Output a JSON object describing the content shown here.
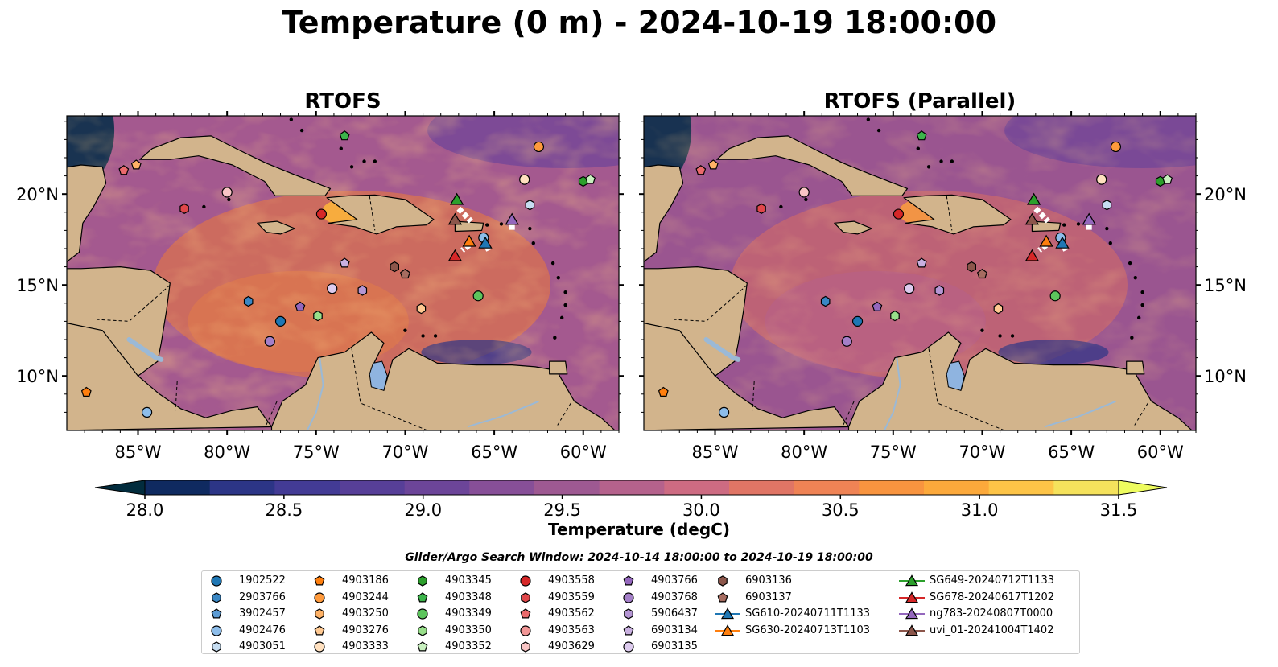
{
  "title": "Temperature (0 m) - 2024-10-19 18:00:00",
  "panels": [
    {
      "title": "RTOFS"
    },
    {
      "title": "RTOFS (Parallel)"
    }
  ],
  "map": {
    "lon_range": [
      -89,
      -58
    ],
    "lat_range": [
      7,
      24.3
    ],
    "lon_ticks": [
      "85°W",
      "80°W",
      "75°W",
      "70°W",
      "65°W",
      "60°W"
    ],
    "lat_ticks": [
      "20°N",
      "15°N",
      "10°N"
    ],
    "land_color": "#d2b48c",
    "lake_color": "#8fb4e0",
    "river_color": "#9bb9d6"
  },
  "colorbar": {
    "label": "Temperature (degC)",
    "ticks": [
      "28.0",
      "28.5",
      "29.0",
      "29.5",
      "30.0",
      "30.5",
      "31.0",
      "31.5"
    ],
    "range": [
      28.0,
      31.5
    ],
    "colors": [
      "#022c3d",
      "#0f2a60",
      "#2c3586",
      "#433b95",
      "#573f98",
      "#6c4599",
      "#874f98",
      "#9e5992",
      "#b5628c",
      "#cd6b82",
      "#e07565",
      "#ef8355",
      "#f8943f",
      "#fca93b",
      "#fdc447",
      "#f5e25c",
      "#eefc5f"
    ]
  },
  "search_window": "Glider/Argo Search Window: 2024-10-14 18:00:00 to 2024-10-19 18:00:00",
  "legend": {
    "columns": [
      [
        {
          "label": "1902522",
          "marker": "circle",
          "color": "#1f77b4"
        },
        {
          "label": "2903766",
          "marker": "hexagon",
          "color": "#3a87c4"
        },
        {
          "label": "3902457",
          "marker": "pentagon",
          "color": "#5c9bd4"
        },
        {
          "label": "4902476",
          "marker": "circle",
          "color": "#8dbdea"
        },
        {
          "label": "4903051",
          "marker": "hexagon",
          "color": "#c6ddf1"
        }
      ],
      [
        {
          "label": "4903186",
          "marker": "pentagon",
          "color": "#ff7f0e"
        },
        {
          "label": "4903244",
          "marker": "circle",
          "color": "#ff9a3c"
        },
        {
          "label": "4903250",
          "marker": "hexagon",
          "color": "#ffb266"
        },
        {
          "label": "4903276",
          "marker": "pentagon",
          "color": "#ffc992"
        },
        {
          "label": "4903333",
          "marker": "circle",
          "color": "#ffe0bf"
        }
      ],
      [
        {
          "label": "4903345",
          "marker": "hexagon",
          "color": "#2ca02c"
        },
        {
          "label": "4903348",
          "marker": "pentagon",
          "color": "#3cb44b"
        },
        {
          "label": "4903349",
          "marker": "circle",
          "color": "#5cc45c"
        },
        {
          "label": "4903350",
          "marker": "hexagon",
          "color": "#98df8a"
        },
        {
          "label": "4903352",
          "marker": "pentagon",
          "color": "#c8f0bf"
        }
      ],
      [
        {
          "label": "4903558",
          "marker": "circle",
          "color": "#d62728"
        },
        {
          "label": "4903559",
          "marker": "hexagon",
          "color": "#e0474a"
        },
        {
          "label": "4903562",
          "marker": "pentagon",
          "color": "#ea6a6c"
        },
        {
          "label": "4903563",
          "marker": "circle",
          "color": "#f29696"
        },
        {
          "label": "4903629",
          "marker": "hexagon",
          "color": "#f9c5c5"
        }
      ],
      [
        {
          "label": "4903766",
          "marker": "pentagon",
          "color": "#9467bd"
        },
        {
          "label": "4903768",
          "marker": "circle",
          "color": "#a47fc8"
        },
        {
          "label": "5906437",
          "marker": "hexagon",
          "color": "#b596d4"
        },
        {
          "label": "6903134",
          "marker": "pentagon",
          "color": "#c9b0e0"
        },
        {
          "label": "6903135",
          "marker": "circle",
          "color": "#ddcbee"
        }
      ],
      [
        {
          "label": "6903136",
          "marker": "hexagon",
          "color": "#8c564b"
        },
        {
          "label": "6903137",
          "marker": "pentagon",
          "color": "#a66c60"
        },
        {
          "label": "SG610-20240711T1133",
          "marker": "triangle",
          "color": "#1f77b4",
          "line": true
        },
        {
          "label": "SG630-20240713T1103",
          "marker": "triangle",
          "color": "#ff7f0e",
          "line": true
        }
      ],
      [
        {
          "label": "SG649-20240712T1133",
          "marker": "triangle",
          "color": "#2ca02c",
          "line": true
        },
        {
          "label": "SG678-20240617T1202",
          "marker": "triangle",
          "color": "#d62728",
          "line": true
        },
        {
          "label": "ng783-20240807T0000",
          "marker": "triangle",
          "color": "#9467bd",
          "line": true
        },
        {
          "label": "uvi_01-20241004T1402",
          "marker": "triangle",
          "color": "#8c564b",
          "line": true
        }
      ]
    ]
  }
}
